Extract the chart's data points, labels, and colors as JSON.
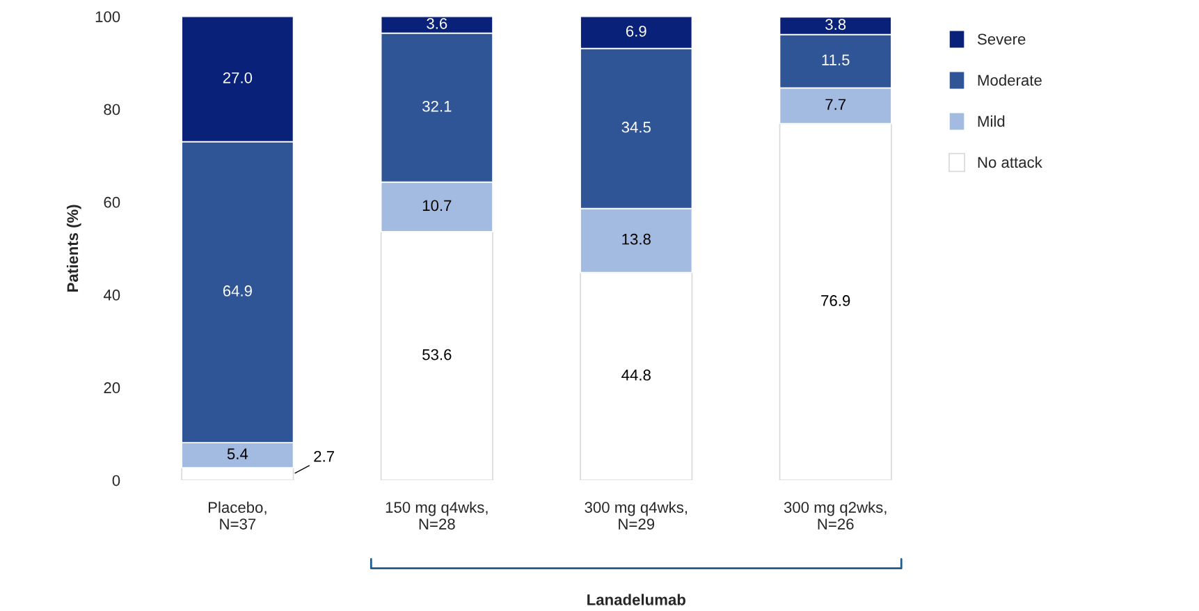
{
  "chart_data": {
    "type": "bar",
    "stacked": true,
    "ylabel": "Patients (%)",
    "categories": [
      "Placebo,\nN=37",
      "150 mg q4wks,\nN=28",
      "300 mg q4wks,\nN=29",
      "300 mg q2wks,\nN=26"
    ],
    "series": [
      {
        "name": "No attack",
        "color": "#ffffff",
        "values": [
          2.7,
          53.6,
          44.8,
          76.9
        ],
        "value_labels": [
          "2.7",
          "53.6",
          "44.8",
          "76.9"
        ]
      },
      {
        "name": "Mild",
        "color": "#a3bbe0",
        "values": [
          5.4,
          10.7,
          13.8,
          7.7
        ],
        "value_labels": [
          "5.4",
          "10.7",
          "13.8",
          "7.7"
        ]
      },
      {
        "name": "Moderate",
        "color": "#2f5597",
        "values": [
          64.9,
          32.1,
          34.5,
          11.5
        ],
        "value_labels": [
          "64.9",
          "32.1",
          "34.5",
          "11.5"
        ]
      },
      {
        "name": "Severe",
        "color": "#0a217a",
        "values": [
          27.0,
          3.6,
          6.9,
          3.8
        ],
        "value_labels": [
          "27.0",
          "3.6",
          "6.9",
          "3.8"
        ]
      }
    ],
    "ylim": [
      0,
      100
    ],
    "yticks": [
      0,
      20,
      40,
      60,
      80,
      100
    ],
    "grid": false,
    "legend": "right",
    "annotations": [
      "Lanadelumab"
    ]
  }
}
